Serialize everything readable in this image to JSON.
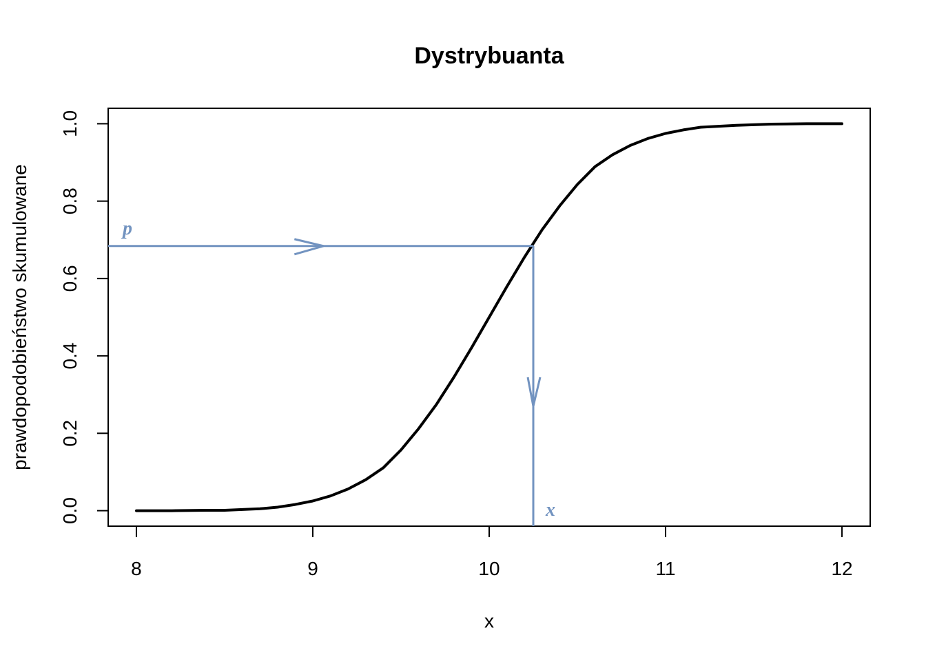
{
  "chart_data": {
    "type": "line",
    "title": "Dystrybuanta",
    "xlabel": "x",
    "ylabel": "prawdopodobieństwo skumulowane",
    "xlim": [
      7.84,
      12.16
    ],
    "ylim": [
      -0.04,
      1.04
    ],
    "xticks": [
      "8",
      "9",
      "10",
      "11",
      "12"
    ],
    "yticks": [
      "0.0",
      "0.2",
      "0.4",
      "0.6",
      "0.8",
      "1.0"
    ],
    "grid": false,
    "legend": "none",
    "series": [
      {
        "color": "#000000",
        "x": [
          8.0,
          8.2,
          8.4,
          8.5,
          8.6,
          8.7,
          8.8,
          8.9,
          9.0,
          9.1,
          9.2,
          9.3,
          9.4,
          9.5,
          9.6,
          9.7,
          9.8,
          9.9,
          10.0,
          10.1,
          10.2,
          10.3,
          10.4,
          10.5,
          10.6,
          10.7,
          10.8,
          10.9,
          11.0,
          11.1,
          11.2,
          11.4,
          11.6,
          11.8,
          12.0
        ],
        "y": [
          0.0,
          0.0,
          0.001,
          0.001,
          0.003,
          0.005,
          0.009,
          0.016,
          0.025,
          0.038,
          0.056,
          0.08,
          0.111,
          0.157,
          0.212,
          0.274,
          0.345,
          0.421,
          0.5,
          0.579,
          0.655,
          0.726,
          0.788,
          0.843,
          0.889,
          0.92,
          0.944,
          0.962,
          0.975,
          0.984,
          0.991,
          0.996,
          0.999,
          1.0,
          1.0
        ]
      }
    ],
    "annotations": {
      "color": "#7293C0",
      "p_label": "p",
      "x_label": "x",
      "p_value": 0.684,
      "x_value": 10.25
    }
  }
}
